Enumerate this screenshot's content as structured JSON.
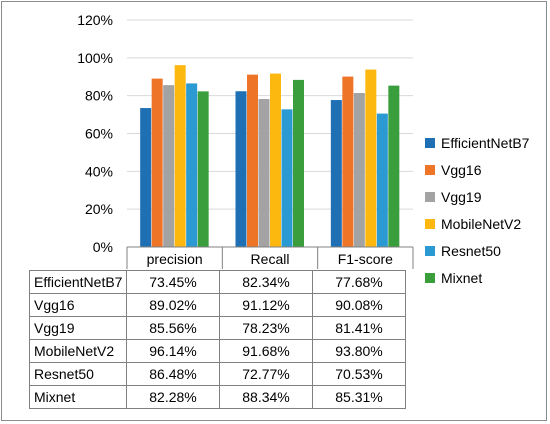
{
  "chart_data": {
    "type": "bar",
    "categories": [
      "precision",
      "Recall",
      "F1-score"
    ],
    "series": [
      {
        "name": "EfficientNetB7",
        "color": "#1f6fb4",
        "values": [
          73.45,
          82.34,
          77.68
        ],
        "labels": [
          "73.45%",
          "82.34%",
          "77.68%"
        ]
      },
      {
        "name": "Vgg16",
        "color": "#ee7427",
        "values": [
          89.02,
          91.12,
          90.08
        ],
        "labels": [
          "89.02%",
          "91.12%",
          "90.08%"
        ]
      },
      {
        "name": "Vgg19",
        "color": "#a3a3a3",
        "values": [
          85.56,
          78.23,
          81.41
        ],
        "labels": [
          "85.56%",
          "78.23%",
          "81.41%"
        ]
      },
      {
        "name": "MobileNetV2",
        "color": "#fcb80f",
        "values": [
          96.14,
          91.68,
          93.8
        ],
        "labels": [
          "96.14%",
          "91.68%",
          "93.80%"
        ]
      },
      {
        "name": "Resnet50",
        "color": "#2b9ad2",
        "values": [
          86.48,
          72.77,
          70.53
        ],
        "labels": [
          "86.48%",
          "72.77%",
          "70.53%"
        ]
      },
      {
        "name": "Mixnet",
        "color": "#3a9e3d",
        "values": [
          82.28,
          88.34,
          85.31
        ],
        "labels": [
          "82.28%",
          "88.34%",
          "85.31%"
        ]
      }
    ],
    "y_ticks": [
      "0%",
      "20%",
      "40%",
      "60%",
      "80%",
      "100%",
      "120%"
    ],
    "ylim": [
      0,
      120
    ],
    "grid": true,
    "legend_position": "right",
    "title": "",
    "xlabel": "",
    "ylabel": ""
  }
}
